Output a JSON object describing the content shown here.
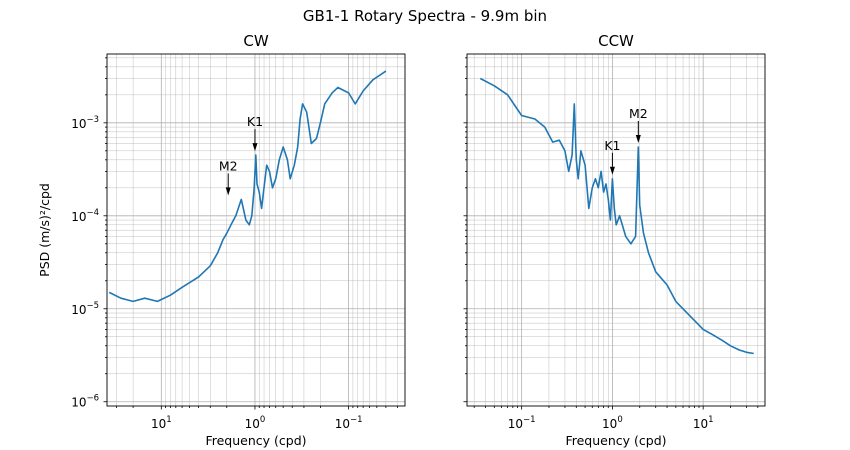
{
  "figure": {
    "suptitle": "GB1-1 Rotary Spectra - 9.9m bin"
  },
  "chart_data": [
    {
      "type": "line",
      "title": "CW",
      "xlabel": "Frequency (cpd)",
      "ylabel": "PSD (m/s)²/cpd",
      "xscale": "log",
      "yscale": "log",
      "x_inverted": true,
      "xlim": [
        38,
        0.025
      ],
      "ylim": [
        9e-07,
        0.0055
      ],
      "grid": "both major and minor",
      "x_tick_labels": [
        "10^1",
        "10^0",
        "10^-1"
      ],
      "y_tick_labels": [
        "10^-6",
        "10^-5",
        "10^-4",
        "10^-3"
      ],
      "color": "#1f77b4",
      "series": [
        {
          "x": [
            36,
            27,
            20,
            15,
            11,
            8,
            6,
            4,
            3,
            2.5,
            2.2,
            2.0,
            1.8,
            1.6,
            1.4,
            1.25,
            1.15,
            1.08,
            1.02,
            0.98,
            0.95,
            0.9,
            0.85,
            0.8,
            0.75,
            0.7,
            0.65,
            0.6,
            0.55,
            0.5,
            0.45,
            0.42,
            0.38,
            0.35,
            0.33,
            0.31,
            0.28,
            0.25,
            0.22,
            0.2,
            0.18,
            0.15,
            0.13,
            0.1,
            0.085,
            0.07,
            0.055,
            0.04
          ],
          "y": [
            1.5e-05,
            1.3e-05,
            1.2e-05,
            1.3e-05,
            1.2e-05,
            1.4e-05,
            1.7e-05,
            2.2e-05,
            2.9e-05,
            4e-05,
            5.5e-05,
            6.5e-05,
            8e-05,
            0.0001,
            0.00015,
            9e-05,
            8e-05,
            0.0001,
            0.0002,
            0.00045,
            0.00022,
            0.00018,
            0.00012,
            0.0002,
            0.00035,
            0.0003,
            0.0002,
            0.00025,
            0.0004,
            0.00055,
            0.0004,
            0.00025,
            0.00035,
            0.00055,
            0.0011,
            0.0016,
            0.0013,
            0.0006,
            0.00068,
            0.001,
            0.0016,
            0.0021,
            0.0024,
            0.0021,
            0.0016,
            0.0022,
            0.0029,
            0.0036
          ]
        }
      ],
      "annotations": [
        {
          "text": "M2",
          "x": 1.93,
          "y": 0.00015
        },
        {
          "text": "K1",
          "x": 1.0,
          "y": 0.00045
        }
      ]
    },
    {
      "type": "line",
      "title": "CCW",
      "xlabel": "Frequency (cpd)",
      "ylabel": "",
      "xscale": "log",
      "yscale": "log",
      "x_inverted": false,
      "xlim": [
        0.025,
        48
      ],
      "ylim": [
        9e-07,
        0.0055
      ],
      "grid": "both major and minor",
      "x_tick_labels": [
        "10^-1",
        "10^0",
        "10^1"
      ],
      "y_tick_labels": [],
      "color": "#1f77b4",
      "series": [
        {
          "x": [
            0.035,
            0.05,
            0.07,
            0.1,
            0.14,
            0.18,
            0.22,
            0.26,
            0.3,
            0.33,
            0.36,
            0.38,
            0.4,
            0.42,
            0.45,
            0.5,
            0.55,
            0.6,
            0.65,
            0.7,
            0.75,
            0.8,
            0.85,
            0.9,
            0.95,
            1.0,
            1.05,
            1.1,
            1.2,
            1.4,
            1.6,
            1.8,
            1.93,
            2.0,
            2.2,
            2.5,
            3,
            4,
            5,
            6,
            8,
            10,
            13,
            16,
            20,
            25,
            30,
            36
          ],
          "y": [
            0.003,
            0.0025,
            0.002,
            0.0012,
            0.0011,
            0.0009,
            0.00062,
            0.00065,
            0.0005,
            0.0003,
            0.00045,
            0.0016,
            0.0004,
            0.00025,
            0.0005,
            0.00035,
            0.00012,
            0.0002,
            0.00025,
            0.0002,
            0.0003,
            0.00018,
            0.00022,
            0.00015,
            9e-05,
            0.00025,
            0.00012,
            8e-05,
            0.0001,
            6e-05,
            5e-05,
            6e-05,
            0.00055,
            0.00013,
            6.5e-05,
            4e-05,
            2.5e-05,
            1.8e-05,
            1.2e-05,
            1e-05,
            7.5e-06,
            6e-06,
            5.2e-06,
            4.6e-06,
            4e-06,
            3.6e-06,
            3.4e-06,
            3.3e-06
          ]
        }
      ],
      "annotations": [
        {
          "text": "K1",
          "x": 1.0,
          "y": 0.00025
        },
        {
          "text": "M2",
          "x": 1.93,
          "y": 0.00055
        }
      ]
    }
  ]
}
